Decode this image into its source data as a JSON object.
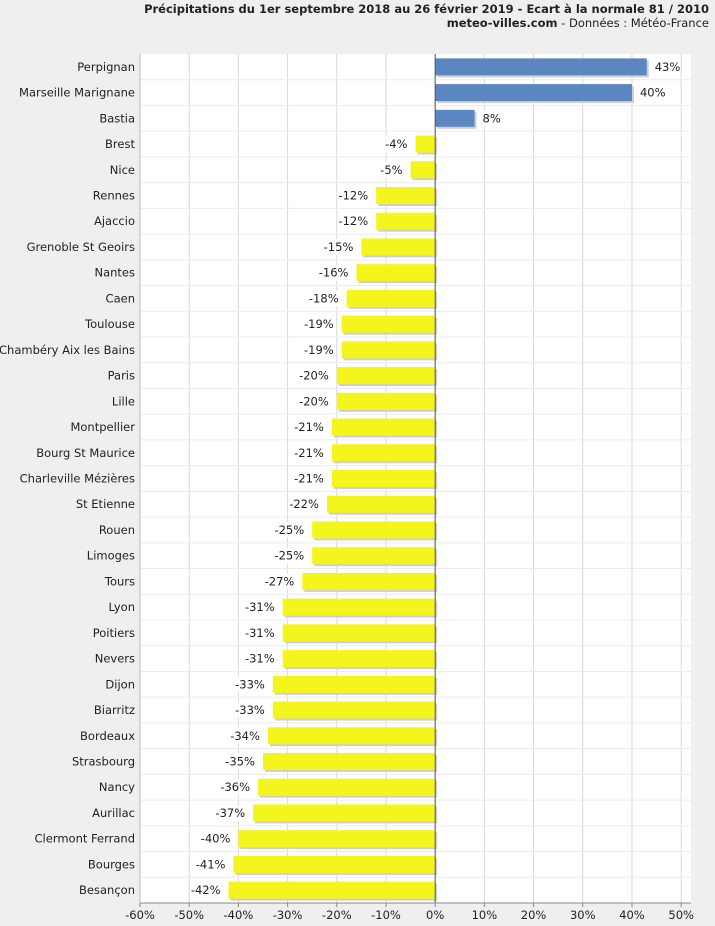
{
  "title": "Précipitations du 1er septembre 2018 au 26 février 2019 - Ecart à la normale 81 / 2010",
  "subtitle_site": "meteo-villes.com",
  "subtitle_source": " - Données : Météo-France",
  "colors": {
    "positive": "#5b86bf",
    "negative": "#f5f51e",
    "grid": "#d8d8d8",
    "plot_bg": "#ffffff",
    "zero_line": "#555555"
  },
  "chart_data": {
    "type": "bar",
    "orientation": "horizontal",
    "categories": [
      "Perpignan",
      "Marseille Marignane",
      "Bastia",
      "Brest",
      "Nice",
      "Rennes",
      "Ajaccio",
      "Grenoble St Geoirs",
      "Nantes",
      "Caen",
      "Toulouse",
      "Chambéry Aix les Bains",
      "Paris",
      "Lille",
      "Montpellier",
      "Bourg St Maurice",
      "Charleville Mézières",
      "St Etienne",
      "Rouen",
      "Limoges",
      "Tours",
      "Lyon",
      "Poitiers",
      "Nevers",
      "Dijon",
      "Biarritz",
      "Bordeaux",
      "Strasbourg",
      "Nancy",
      "Aurillac",
      "Clermont Ferrand",
      "Bourges",
      "Besançon"
    ],
    "values": [
      43,
      40,
      8,
      -4,
      -5,
      -12,
      -12,
      -15,
      -16,
      -18,
      -19,
      -19,
      -20,
      -20,
      -21,
      -21,
      -21,
      -22,
      -25,
      -25,
      -27,
      -31,
      -31,
      -31,
      -33,
      -33,
      -34,
      -35,
      -36,
      -37,
      -40,
      -41,
      -42
    ],
    "labels": [
      "43%",
      "40%",
      "8%",
      "-4%",
      "-5%",
      "-12%",
      "-12%",
      "-15%",
      "-16%",
      "-18%",
      "-19%",
      "-19%",
      "-20%",
      "-20%",
      "-21%",
      "-21%",
      "-21%",
      "-22%",
      "-25%",
      "-25%",
      "-27%",
      "-31%",
      "-31%",
      "-31%",
      "-33%",
      "-33%",
      "-34%",
      "-35%",
      "-36%",
      "-37%",
      "-40%",
      "-41%",
      "-42%"
    ],
    "xlim": [
      -60,
      52
    ],
    "xticks": [
      -60,
      -50,
      -40,
      -30,
      -20,
      -10,
      0,
      10,
      20,
      30,
      40,
      50
    ],
    "xtick_labels": [
      "-60%",
      "-50%",
      "-40%",
      "-30%",
      "-20%",
      "-10%",
      "0%",
      "10%",
      "20%",
      "30%",
      "40%",
      "50%"
    ],
    "grid": true
  }
}
